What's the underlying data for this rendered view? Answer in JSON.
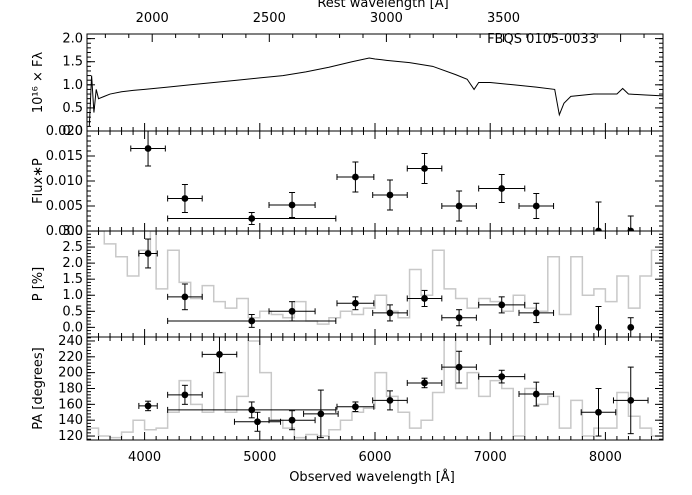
{
  "chart_data": {
    "type": "scatter",
    "object_label": "FBQS 0105-0033",
    "top_axis": {
      "label": "Rest wavelength [Å]",
      "ticks": [
        "2000",
        "2500",
        "3000",
        "3500"
      ],
      "tick_values": [
        2000,
        2500,
        3000,
        3500
      ],
      "redshift_factor": 2.033
    },
    "bottom_axis": {
      "label": "Observed wavelength [Å]",
      "ticks": [
        "4000",
        "5000",
        "6000",
        "7000",
        "8000"
      ],
      "tick_values": [
        4000,
        5000,
        6000,
        7000,
        8000
      ],
      "xlim": [
        3500,
        8500
      ]
    },
    "panels": [
      {
        "name": "spectrum",
        "ylabel": "10¹⁶ × Fλ",
        "ylim": [
          0.0,
          2.1
        ],
        "yticks": [
          "0.0",
          "0.5",
          "1.0",
          "1.5",
          "2.0"
        ],
        "ytick_values": [
          0.0,
          0.5,
          1.0,
          1.5,
          2.0
        ],
        "spectrum": [
          [
            3520,
            0.1
          ],
          [
            3540,
            1.2
          ],
          [
            3560,
            0.4
          ],
          [
            3580,
            0.9
          ],
          [
            3600,
            0.7
          ],
          [
            3650,
            0.75
          ],
          [
            3700,
            0.8
          ],
          [
            3800,
            0.85
          ],
          [
            3900,
            0.88
          ],
          [
            4000,
            0.9
          ],
          [
            4200,
            0.95
          ],
          [
            4400,
            1.0
          ],
          [
            4600,
            1.05
          ],
          [
            4800,
            1.1
          ],
          [
            5000,
            1.15
          ],
          [
            5200,
            1.2
          ],
          [
            5400,
            1.28
          ],
          [
            5600,
            1.38
          ],
          [
            5800,
            1.5
          ],
          [
            5950,
            1.58
          ],
          [
            6000,
            1.56
          ],
          [
            6100,
            1.53
          ],
          [
            6300,
            1.48
          ],
          [
            6500,
            1.4
          ],
          [
            6700,
            1.22
          ],
          [
            6800,
            1.12
          ],
          [
            6860,
            0.9
          ],
          [
            6900,
            1.05
          ],
          [
            7000,
            1.05
          ],
          [
            7200,
            1.0
          ],
          [
            7400,
            0.95
          ],
          [
            7560,
            0.9
          ],
          [
            7600,
            0.35
          ],
          [
            7640,
            0.6
          ],
          [
            7700,
            0.75
          ],
          [
            7900,
            0.8
          ],
          [
            8100,
            0.8
          ],
          [
            8150,
            0.92
          ],
          [
            8200,
            0.8
          ],
          [
            8350,
            0.78
          ],
          [
            8500,
            0.76
          ]
        ]
      },
      {
        "name": "polarized-flux",
        "ylabel": "Flux∗P",
        "ylim": [
          0.0,
          0.02
        ],
        "yticks": [
          "0.000",
          "0.005",
          "0.010",
          "0.015",
          "0.020"
        ],
        "ytick_values": [
          0.0,
          0.005,
          0.01,
          0.015,
          0.02
        ],
        "points": [
          {
            "x": 4030,
            "xerr": 150,
            "y": 0.0165,
            "yerr": 0.0035
          },
          {
            "x": 4350,
            "xerr": 150,
            "y": 0.0065,
            "yerr": 0.0028
          },
          {
            "x": 4930,
            "xerr": 730,
            "y": 0.0025,
            "yerr": 0.0012
          },
          {
            "x": 5280,
            "xerr": 200,
            "y": 0.0052,
            "yerr": 0.0025
          },
          {
            "x": 5830,
            "xerr": 160,
            "y": 0.0108,
            "yerr": 0.003
          },
          {
            "x": 6130,
            "xerr": 150,
            "y": 0.0072,
            "yerr": 0.003
          },
          {
            "x": 6430,
            "xerr": 150,
            "y": 0.0125,
            "yerr": 0.003
          },
          {
            "x": 6730,
            "xerr": 150,
            "y": 0.005,
            "yerr": 0.003
          },
          {
            "x": 7100,
            "xerr": 200,
            "y": 0.0085,
            "yerr": 0.0028
          },
          {
            "x": 7400,
            "xerr": 150,
            "y": 0.005,
            "yerr": 0.0025
          },
          {
            "x": 7940,
            "xerr": 0,
            "y": 0.0,
            "yerr": 0.0058
          },
          {
            "x": 8220,
            "xerr": 0,
            "y": 0.0,
            "yerr": 0.003
          }
        ]
      },
      {
        "name": "polarization-percent",
        "ylabel": "P [%]",
        "ylim": [
          -0.3,
          3.0
        ],
        "yticks": [
          "0.0",
          "0.5",
          "1.0",
          "1.5",
          "2.0",
          "2.5",
          "3.0"
        ],
        "ytick_values": [
          0.0,
          0.5,
          1.0,
          1.5,
          2.0,
          2.5,
          3.0
        ],
        "points": [
          {
            "x": 4030,
            "xerr": 80,
            "y": 2.3,
            "yerr": 0.45
          },
          {
            "x": 4350,
            "xerr": 150,
            "y": 0.95,
            "yerr": 0.4
          },
          {
            "x": 4930,
            "xerr": 730,
            "y": 0.2,
            "yerr": 0.2
          },
          {
            "x": 5280,
            "xerr": 200,
            "y": 0.5,
            "yerr": 0.3
          },
          {
            "x": 5830,
            "xerr": 160,
            "y": 0.75,
            "yerr": 0.2
          },
          {
            "x": 6130,
            "xerr": 150,
            "y": 0.45,
            "yerr": 0.25
          },
          {
            "x": 6430,
            "xerr": 150,
            "y": 0.9,
            "yerr": 0.25
          },
          {
            "x": 6730,
            "xerr": 150,
            "y": 0.3,
            "yerr": 0.25
          },
          {
            "x": 7100,
            "xerr": 200,
            "y": 0.7,
            "yerr": 0.25
          },
          {
            "x": 7400,
            "xerr": 150,
            "y": 0.45,
            "yerr": 0.3
          },
          {
            "x": 7940,
            "xerr": 0,
            "y": 0.0,
            "yerr": 0.65
          },
          {
            "x": 8220,
            "xerr": 0,
            "y": 0.0,
            "yerr": 0.3
          }
        ],
        "background_histogram": [
          [
            3500,
            3.0
          ],
          [
            3650,
            2.6
          ],
          [
            3750,
            2.2
          ],
          [
            3850,
            1.6
          ],
          [
            3950,
            2.4
          ],
          [
            4050,
            3.0
          ],
          [
            4100,
            1.2
          ],
          [
            4200,
            2.4
          ],
          [
            4300,
            1.4
          ],
          [
            4400,
            0.9
          ],
          [
            4500,
            1.3
          ],
          [
            4600,
            0.8
          ],
          [
            4700,
            0.6
          ],
          [
            4800,
            0.9
          ],
          [
            4900,
            0.3
          ],
          [
            5000,
            0.5
          ],
          [
            5100,
            0.4
          ],
          [
            5200,
            0.3
          ],
          [
            5300,
            0.8
          ],
          [
            5400,
            0.2
          ],
          [
            5500,
            0.1
          ],
          [
            5600,
            0.3
          ],
          [
            5700,
            0.5
          ],
          [
            5800,
            0.4
          ],
          [
            5900,
            0.6
          ],
          [
            6000,
            1.0
          ],
          [
            6100,
            0.5
          ],
          [
            6200,
            0.3
          ],
          [
            6300,
            1.8
          ],
          [
            6400,
            1.0
          ],
          [
            6500,
            2.4
          ],
          [
            6600,
            1.2
          ],
          [
            6700,
            0.9
          ],
          [
            6800,
            0.6
          ],
          [
            6900,
            0.9
          ],
          [
            7000,
            0.8
          ],
          [
            7100,
            0.5
          ],
          [
            7200,
            1.0
          ],
          [
            7300,
            0.6
          ],
          [
            7400,
            0.5
          ],
          [
            7500,
            2.2
          ],
          [
            7600,
            0.4
          ],
          [
            7700,
            2.2
          ],
          [
            7800,
            1.0
          ],
          [
            7900,
            1.2
          ],
          [
            8000,
            0.8
          ],
          [
            8100,
            1.6
          ],
          [
            8200,
            0.6
          ],
          [
            8300,
            1.6
          ],
          [
            8400,
            2.4
          ],
          [
            8500,
            2.4
          ]
        ]
      },
      {
        "name": "position-angle",
        "ylabel": "PA [degrees]",
        "ylim": [
          115,
          245
        ],
        "yticks": [
          "120",
          "140",
          "160",
          "180",
          "200",
          "220",
          "240"
        ],
        "ytick_values": [
          120,
          140,
          160,
          180,
          200,
          220,
          240
        ],
        "points": [
          {
            "x": 4030,
            "xerr": 80,
            "y": 158,
            "yerr": 6
          },
          {
            "x": 4350,
            "xerr": 150,
            "y": 172,
            "yerr": 12
          },
          {
            "x": 4650,
            "xerr": 150,
            "y": 223,
            "yerr": 23
          },
          {
            "x": 4930,
            "xerr": 730,
            "y": 153,
            "yerr": 10
          },
          {
            "x": 4980,
            "xerr": 200,
            "y": 138,
            "yerr": 12
          },
          {
            "x": 5280,
            "xerr": 200,
            "y": 140,
            "yerr": 12
          },
          {
            "x": 5530,
            "xerr": 150,
            "y": 148,
            "yerr": 30
          },
          {
            "x": 5830,
            "xerr": 160,
            "y": 157,
            "yerr": 6
          },
          {
            "x": 6130,
            "xerr": 150,
            "y": 165,
            "yerr": 12
          },
          {
            "x": 6430,
            "xerr": 150,
            "y": 187,
            "yerr": 6
          },
          {
            "x": 6730,
            "xerr": 150,
            "y": 207,
            "yerr": 20
          },
          {
            "x": 7100,
            "xerr": 200,
            "y": 195,
            "yerr": 8
          },
          {
            "x": 7400,
            "xerr": 150,
            "y": 173,
            "yerr": 15
          },
          {
            "x": 7940,
            "xerr": 150,
            "y": 150,
            "yerr": 30
          },
          {
            "x": 8220,
            "xerr": 150,
            "y": 165,
            "yerr": 42
          }
        ],
        "background_histogram": [
          [
            3500,
            130
          ],
          [
            3600,
            120
          ],
          [
            3700,
            118
          ],
          [
            3800,
            125
          ],
          [
            3900,
            140
          ],
          [
            4000,
            128
          ],
          [
            4100,
            130
          ],
          [
            4200,
            150
          ],
          [
            4300,
            190
          ],
          [
            4400,
            160
          ],
          [
            4500,
            150
          ],
          [
            4600,
            200
          ],
          [
            4700,
            150
          ],
          [
            4800,
            170
          ],
          [
            4900,
            240
          ],
          [
            5000,
            200
          ],
          [
            5100,
            140
          ],
          [
            5200,
            130
          ],
          [
            5300,
            118
          ],
          [
            5400,
            122
          ],
          [
            5500,
            120
          ],
          [
            5600,
            128
          ],
          [
            5700,
            140
          ],
          [
            5800,
            150
          ],
          [
            5900,
            155
          ],
          [
            6000,
            200
          ],
          [
            6100,
            170
          ],
          [
            6200,
            150
          ],
          [
            6300,
            130
          ],
          [
            6400,
            140
          ],
          [
            6500,
            175
          ],
          [
            6600,
            245
          ],
          [
            6700,
            180
          ],
          [
            6800,
            200
          ],
          [
            6900,
            170
          ],
          [
            7000,
            190
          ],
          [
            7100,
            180
          ],
          [
            7200,
            120
          ],
          [
            7300,
            180
          ],
          [
            7400,
            160
          ],
          [
            7500,
            170
          ],
          [
            7600,
            130
          ],
          [
            7700,
            165
          ],
          [
            7800,
            120
          ],
          [
            7900,
            130
          ],
          [
            8000,
            130
          ],
          [
            8100,
            175
          ],
          [
            8200,
            145
          ],
          [
            8300,
            130
          ],
          [
            8400,
            120
          ],
          [
            8500,
            150
          ]
        ]
      }
    ]
  }
}
